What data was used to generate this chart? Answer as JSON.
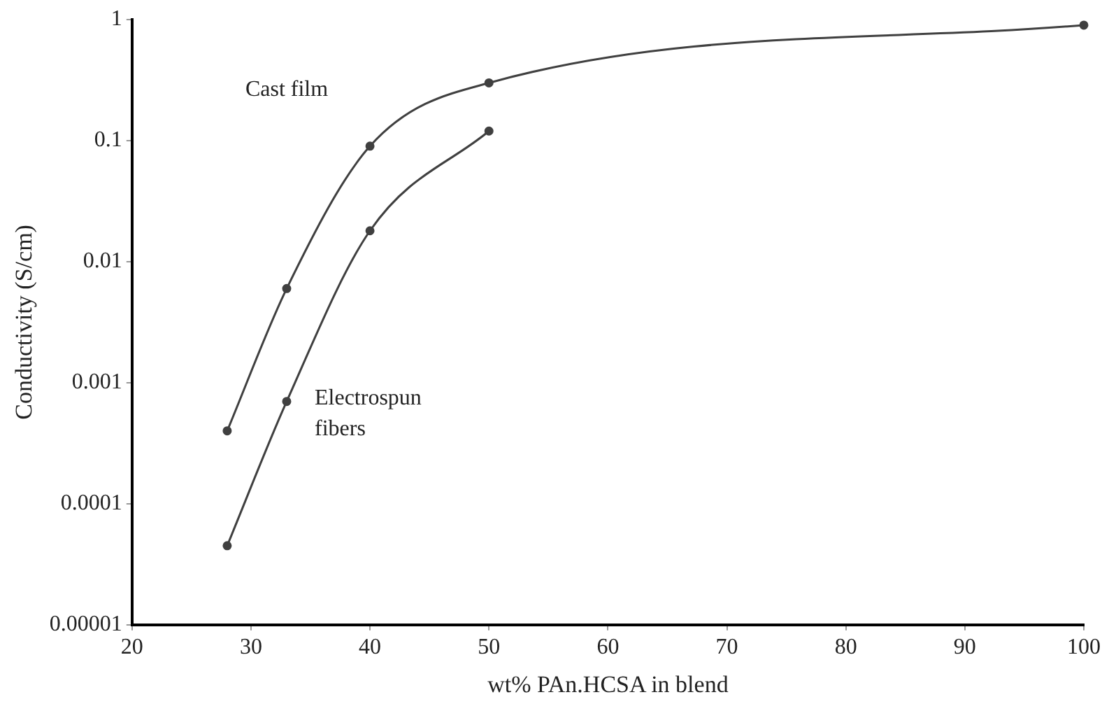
{
  "chart_data": {
    "type": "line",
    "xlabel": "wt% PAn.HCSA in blend",
    "ylabel": "Conductivity (S/cm)",
    "xlim": [
      20,
      100
    ],
    "xticks": [
      20,
      30,
      40,
      50,
      60,
      70,
      80,
      90,
      100
    ],
    "ylim": [
      1e-05,
      1
    ],
    "yticks": [
      {
        "value": 1e-05,
        "label": "0.00001"
      },
      0.0001,
      0.001,
      0.01,
      0.1,
      1
    ],
    "log": "y",
    "grid": false,
    "legend": false,
    "marker": "circle",
    "line_style": "solid",
    "series": [
      {
        "name": "Cast film",
        "color": "#404040",
        "x": [
          28,
          33,
          40,
          50,
          100
        ],
        "values": [
          0.0004,
          0.006,
          0.09,
          0.3,
          0.9
        ]
      },
      {
        "name": "Electrospun fibers",
        "color": "#404040",
        "x": [
          28,
          33,
          40,
          50
        ],
        "values": [
          4.5e-05,
          0.0007,
          0.018,
          0.12
        ]
      }
    ]
  }
}
